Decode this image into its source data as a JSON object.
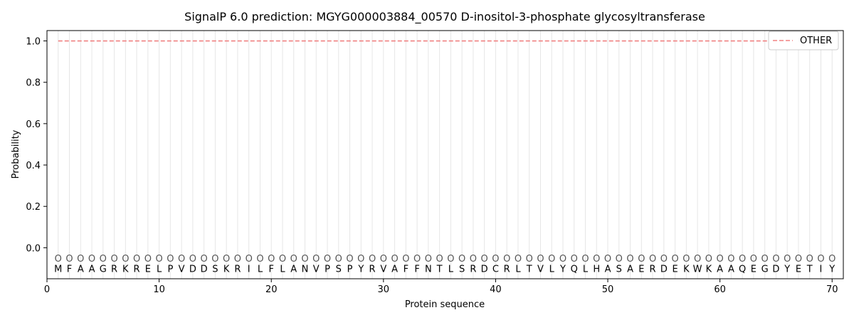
{
  "chart_data": {
    "type": "line",
    "title": "SignalP 6.0 prediction: MGYG000003884_00570 D-inositol-3-phosphate glycosyltransferase",
    "xlabel": "Protein sequence",
    "ylabel": "Probability",
    "xlim": [
      0,
      71
    ],
    "ylim": [
      -0.15,
      1.05
    ],
    "xticks": [
      0,
      10,
      20,
      30,
      40,
      50,
      60,
      70
    ],
    "yticks": [
      "0.0",
      "0.2",
      "0.4",
      "0.6",
      "0.8",
      "1.0"
    ],
    "sequence": [
      "M",
      "F",
      "A",
      "A",
      "G",
      "R",
      "K",
      "R",
      "E",
      "L",
      "P",
      "V",
      "D",
      "D",
      "S",
      "K",
      "R",
      "I",
      "L",
      "F",
      "L",
      "A",
      "N",
      "V",
      "P",
      "S",
      "P",
      "Y",
      "R",
      "V",
      "A",
      "F",
      "F",
      "N",
      "T",
      "L",
      "S",
      "R",
      "D",
      "C",
      "R",
      "L",
      "T",
      "V",
      "L",
      "Y",
      "Q",
      "L",
      "H",
      "A",
      "S",
      "A",
      "E",
      "R",
      "D",
      "E",
      "K",
      "W",
      "K",
      "A",
      "A",
      "Q",
      "E",
      "G",
      "D",
      "Y",
      "E",
      "T",
      "I",
      "Y"
    ],
    "region_labels": [
      "O",
      "O",
      "O",
      "O",
      "O",
      "O",
      "O",
      "O",
      "O",
      "O",
      "O",
      "O",
      "O",
      "O",
      "O",
      "O",
      "O",
      "O",
      "O",
      "O",
      "O",
      "O",
      "O",
      "O",
      "O",
      "O",
      "O",
      "O",
      "O",
      "O",
      "O",
      "O",
      "O",
      "O",
      "O",
      "O",
      "O",
      "O",
      "O",
      "O",
      "O",
      "O",
      "O",
      "O",
      "O",
      "O",
      "O",
      "O",
      "O",
      "O",
      "O",
      "O",
      "O",
      "O",
      "O",
      "O",
      "O",
      "O",
      "O",
      "O",
      "O",
      "O",
      "O",
      "O",
      "O",
      "O",
      "O",
      "O",
      "O",
      "O"
    ],
    "series": [
      {
        "name": "OTHER",
        "color": "#f08080",
        "style": "dashed",
        "x_start": 1,
        "x_end": 70,
        "value": 1.0
      }
    ],
    "legend": {
      "placement": "top-right",
      "entries": [
        "OTHER"
      ]
    },
    "grid": "vertical lines at each residue"
  }
}
